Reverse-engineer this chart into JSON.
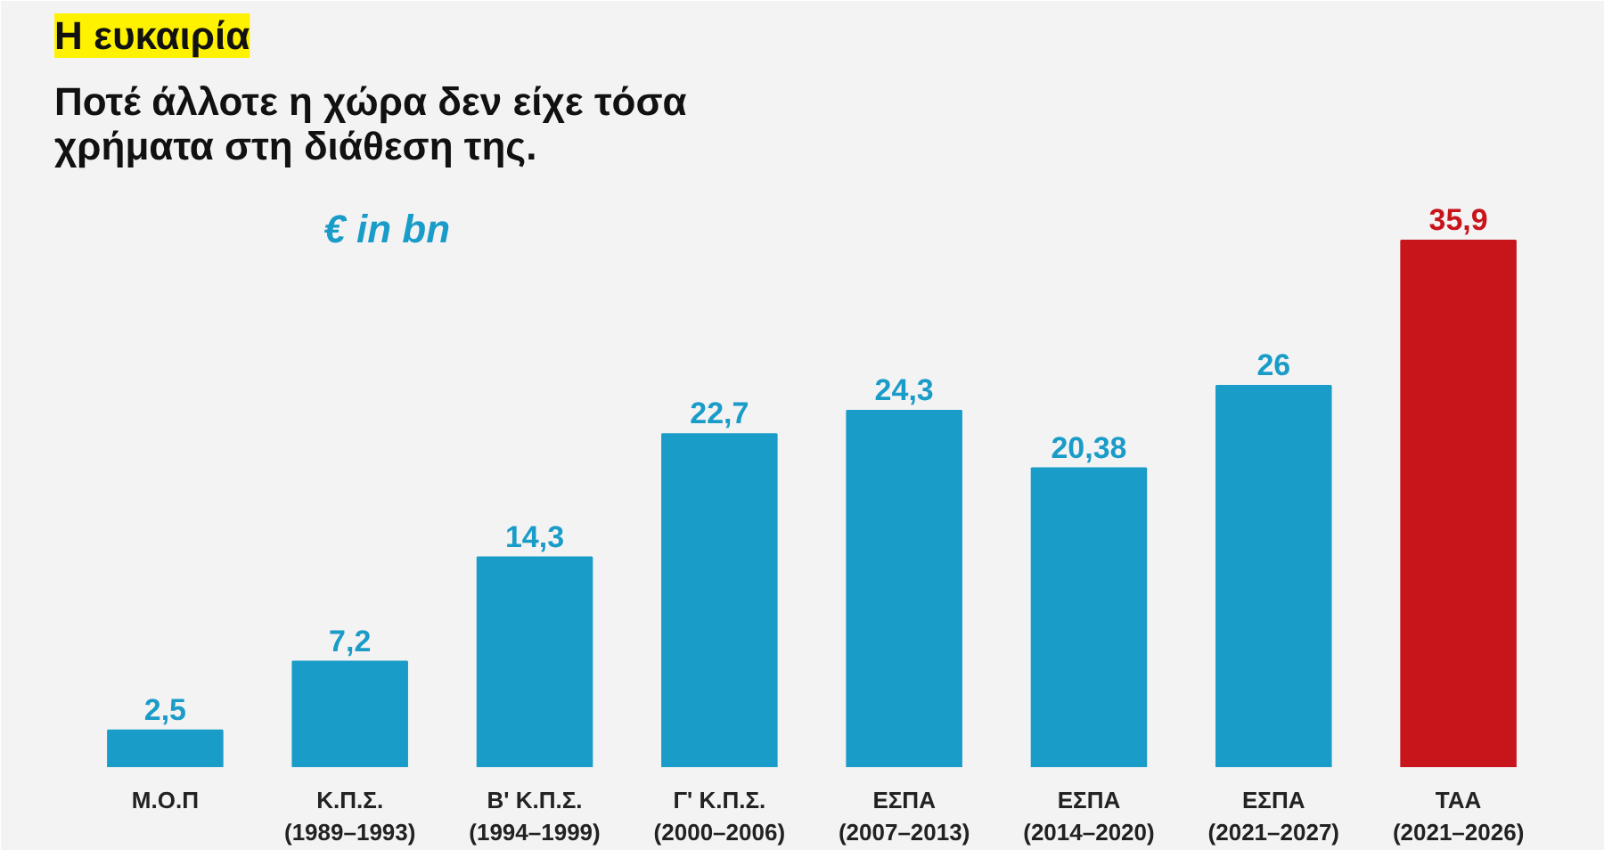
{
  "chart_data": {
    "type": "bar",
    "title": "Η ευκαιρία",
    "subtitle": "Ποτέ άλλοτε η χώρα δεν είχε τόσα\nχρήματα στη διάθεση της.",
    "ylabel": "€ in bn",
    "categories": [
      "Μ.Ο.Π",
      "Κ.Π.Σ.\n(1989–1993)",
      "Β' Κ.Π.Σ.\n(1994–1999)",
      "Γ' Κ.Π.Σ.\n(2000–2006)",
      "ΕΣΠΑ\n(2007–2013)",
      "ΕΣΠΑ\n(2014–2020)",
      "ΕΣΠΑ\n(2021–2027)",
      "ΤΑΑ\n(2021–2026)"
    ],
    "values": [
      2.5,
      7.2,
      14.3,
      22.7,
      24.3,
      20.38,
      26,
      35.9
    ],
    "value_labels": [
      "2,5",
      "7,2",
      "14,3",
      "22,7",
      "24,3",
      "20,38",
      "26",
      "35,9"
    ],
    "colors": [
      "#1a9cc8",
      "#1a9cc8",
      "#1a9cc8",
      "#1a9cc8",
      "#1a9cc8",
      "#1a9cc8",
      "#1a9cc8",
      "#c8151b"
    ],
    "grid": false
  }
}
